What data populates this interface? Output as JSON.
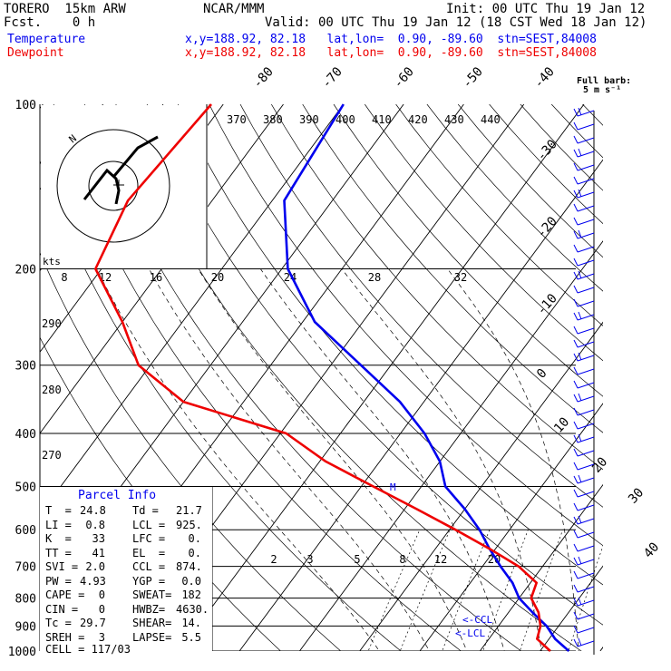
{
  "header": {
    "model": "TORERO  15km ARW",
    "org": "NCAR/MMM",
    "init": "Init: 00 UTC Thu 19 Jan 12",
    "fcst": "Fcst.    0 h",
    "valid": "Valid: 00 UTC Thu 19 Jan 12 (18 CST Wed 18 Jan 12)",
    "temp_label": "Temperature",
    "temp_info": "x,y=188.92, 82.18   lat,lon=  0.90, -89.60  stn=SEST,84008",
    "dew_label": "Dewpoint",
    "dew_info": "x,y=188.92, 82.18   lat,lon=  0.90, -89.60  stn=SEST,84008",
    "barb_title": "Full barb:",
    "barb_units": "5 m s⁻¹"
  },
  "chart_data": {
    "type": "line",
    "title": "",
    "ylabel": "",
    "pressure_levels": [
      "100",
      "200",
      "300",
      "400",
      "500",
      "600",
      "700",
      "800",
      "900",
      "1000"
    ],
    "isotherm_labels": [
      "-80",
      "-70",
      "-60",
      "-50",
      "-40",
      "-30",
      "-20",
      "-10",
      "0",
      "10",
      "20",
      "30",
      "40"
    ],
    "theta_labels": [
      "370",
      "380",
      "390",
      "400",
      "410",
      "420",
      "430",
      "440"
    ],
    "theta_low_labels": [
      "290",
      "280",
      "270"
    ],
    "mixing_ratio_labels": [
      "2",
      "3",
      "5",
      "8",
      "12",
      "20"
    ],
    "hodograph_kts_label": "kts",
    "hodograph_speed_labels": [
      "8",
      "12",
      "16",
      "20",
      "24",
      "28",
      "32"
    ],
    "hodograph_compass": "N",
    "ccl_marker": "M",
    "lcl_markers": [
      "<-CCL",
      "<-LCL"
    ],
    "series": [
      {
        "name": "Temperature",
        "color": "#0000ee",
        "points": [
          [
            100,
            -80
          ],
          [
            150,
            -78
          ],
          [
            200,
            -69
          ],
          [
            250,
            -58
          ],
          [
            300,
            -45
          ],
          [
            350,
            -34
          ],
          [
            400,
            -26
          ],
          [
            450,
            -20
          ],
          [
            500,
            -16
          ],
          [
            550,
            -10
          ],
          [
            600,
            -5
          ],
          [
            650,
            -1
          ],
          [
            700,
            3
          ],
          [
            750,
            7
          ],
          [
            800,
            10
          ],
          [
            850,
            14
          ],
          [
            900,
            18
          ],
          [
            950,
            21
          ],
          [
            1000,
            24.8
          ]
        ]
      },
      {
        "name": "Dewpoint",
        "color": "#ee0000",
        "points": [
          [
            100,
            -102
          ],
          [
            150,
            -104
          ],
          [
            200,
            -101
          ],
          [
            250,
            -90
          ],
          [
            300,
            -82
          ],
          [
            350,
            -70
          ],
          [
            400,
            -49
          ],
          [
            450,
            -39
          ],
          [
            500,
            -28
          ],
          [
            550,
            -18
          ],
          [
            600,
            -9
          ],
          [
            650,
            -1
          ],
          [
            700,
            6
          ],
          [
            750,
            11
          ],
          [
            800,
            12
          ],
          [
            850,
            15
          ],
          [
            900,
            17
          ],
          [
            950,
            18
          ],
          [
            1000,
            21.7
          ]
        ]
      }
    ]
  },
  "parcel": {
    "title": "Parcel Info",
    "rows": [
      [
        "T  =",
        "24.8",
        "Td =",
        "21.7"
      ],
      [
        "LI =",
        "0.8",
        "LCL =",
        "925."
      ],
      [
        "K  =",
        "33",
        "LFC =",
        "0."
      ],
      [
        "TT =",
        "41",
        "EL  =",
        "0."
      ],
      [
        "SVI =",
        "2.0",
        "CCL =",
        "874."
      ],
      [
        "PW =",
        "4.93",
        "YGP =",
        "0.0"
      ],
      [
        "CAPE =",
        "0",
        "SWEAT=",
        "182"
      ],
      [
        "CIN =",
        "0",
        "HWBZ=",
        "4630."
      ],
      [
        "Tc =",
        "29.7",
        "SHEAR=",
        "14."
      ],
      [
        "SREH =",
        "3",
        "LAPSE=",
        "5.5"
      ]
    ],
    "cell": "CELL = 117/03"
  }
}
